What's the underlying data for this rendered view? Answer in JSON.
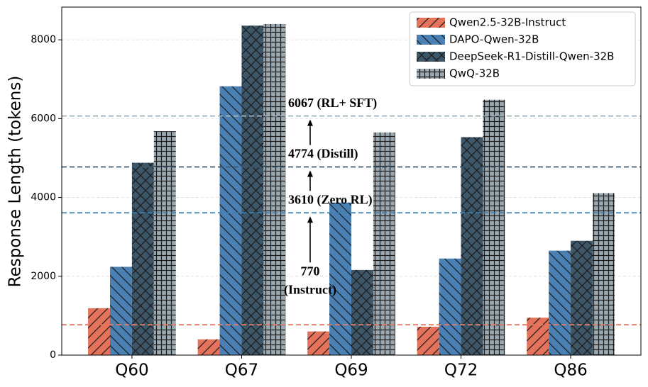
{
  "chart_data": {
    "type": "bar",
    "ylabel": "Response Length (tokens)",
    "categories": [
      "Q60",
      "Q67",
      "Q69",
      "Q72",
      "Q86"
    ],
    "series": [
      {
        "name": "Qwen2.5-32B-Instruct",
        "color": "#e5735c",
        "hatch": "//",
        "values": [
          1190,
          400,
          600,
          720,
          950
        ]
      },
      {
        "name": "DAPO-Qwen-32B",
        "color": "#4a80b4",
        "hatch": "\\\\",
        "values": [
          2240,
          6820,
          3870,
          2450,
          2650
        ]
      },
      {
        "name": "DeepSeek-R1-Distill-Qwen-32B",
        "color": "#3d5668",
        "hatch": "xx",
        "values": [
          4880,
          8360,
          2160,
          5530,
          2900
        ]
      },
      {
        "name": "QwQ-32B",
        "color": "#9ba8b0",
        "hatch": "++",
        "values": [
          5680,
          8400,
          5650,
          6480,
          4110
        ]
      }
    ],
    "hlines": [
      {
        "value": 770,
        "color": "#e07b67",
        "label_lines": [
          "770",
          "(Instruct)"
        ]
      },
      {
        "value": 3610,
        "color": "#3e7fb1",
        "label_lines": [
          "3610 (Zero RL)"
        ]
      },
      {
        "value": 4774,
        "color": "#3f5a70",
        "label_lines": [
          "4774 (Distill)"
        ]
      },
      {
        "value": 6067,
        "color": "#9fb3bd",
        "label_lines": [
          "6067 (RL+ SFT)"
        ]
      }
    ],
    "ylim": [
      0,
      8830
    ],
    "yticks": [
      0,
      2000,
      4000,
      6000,
      8000
    ],
    "grid": true,
    "legend": "upper right"
  }
}
